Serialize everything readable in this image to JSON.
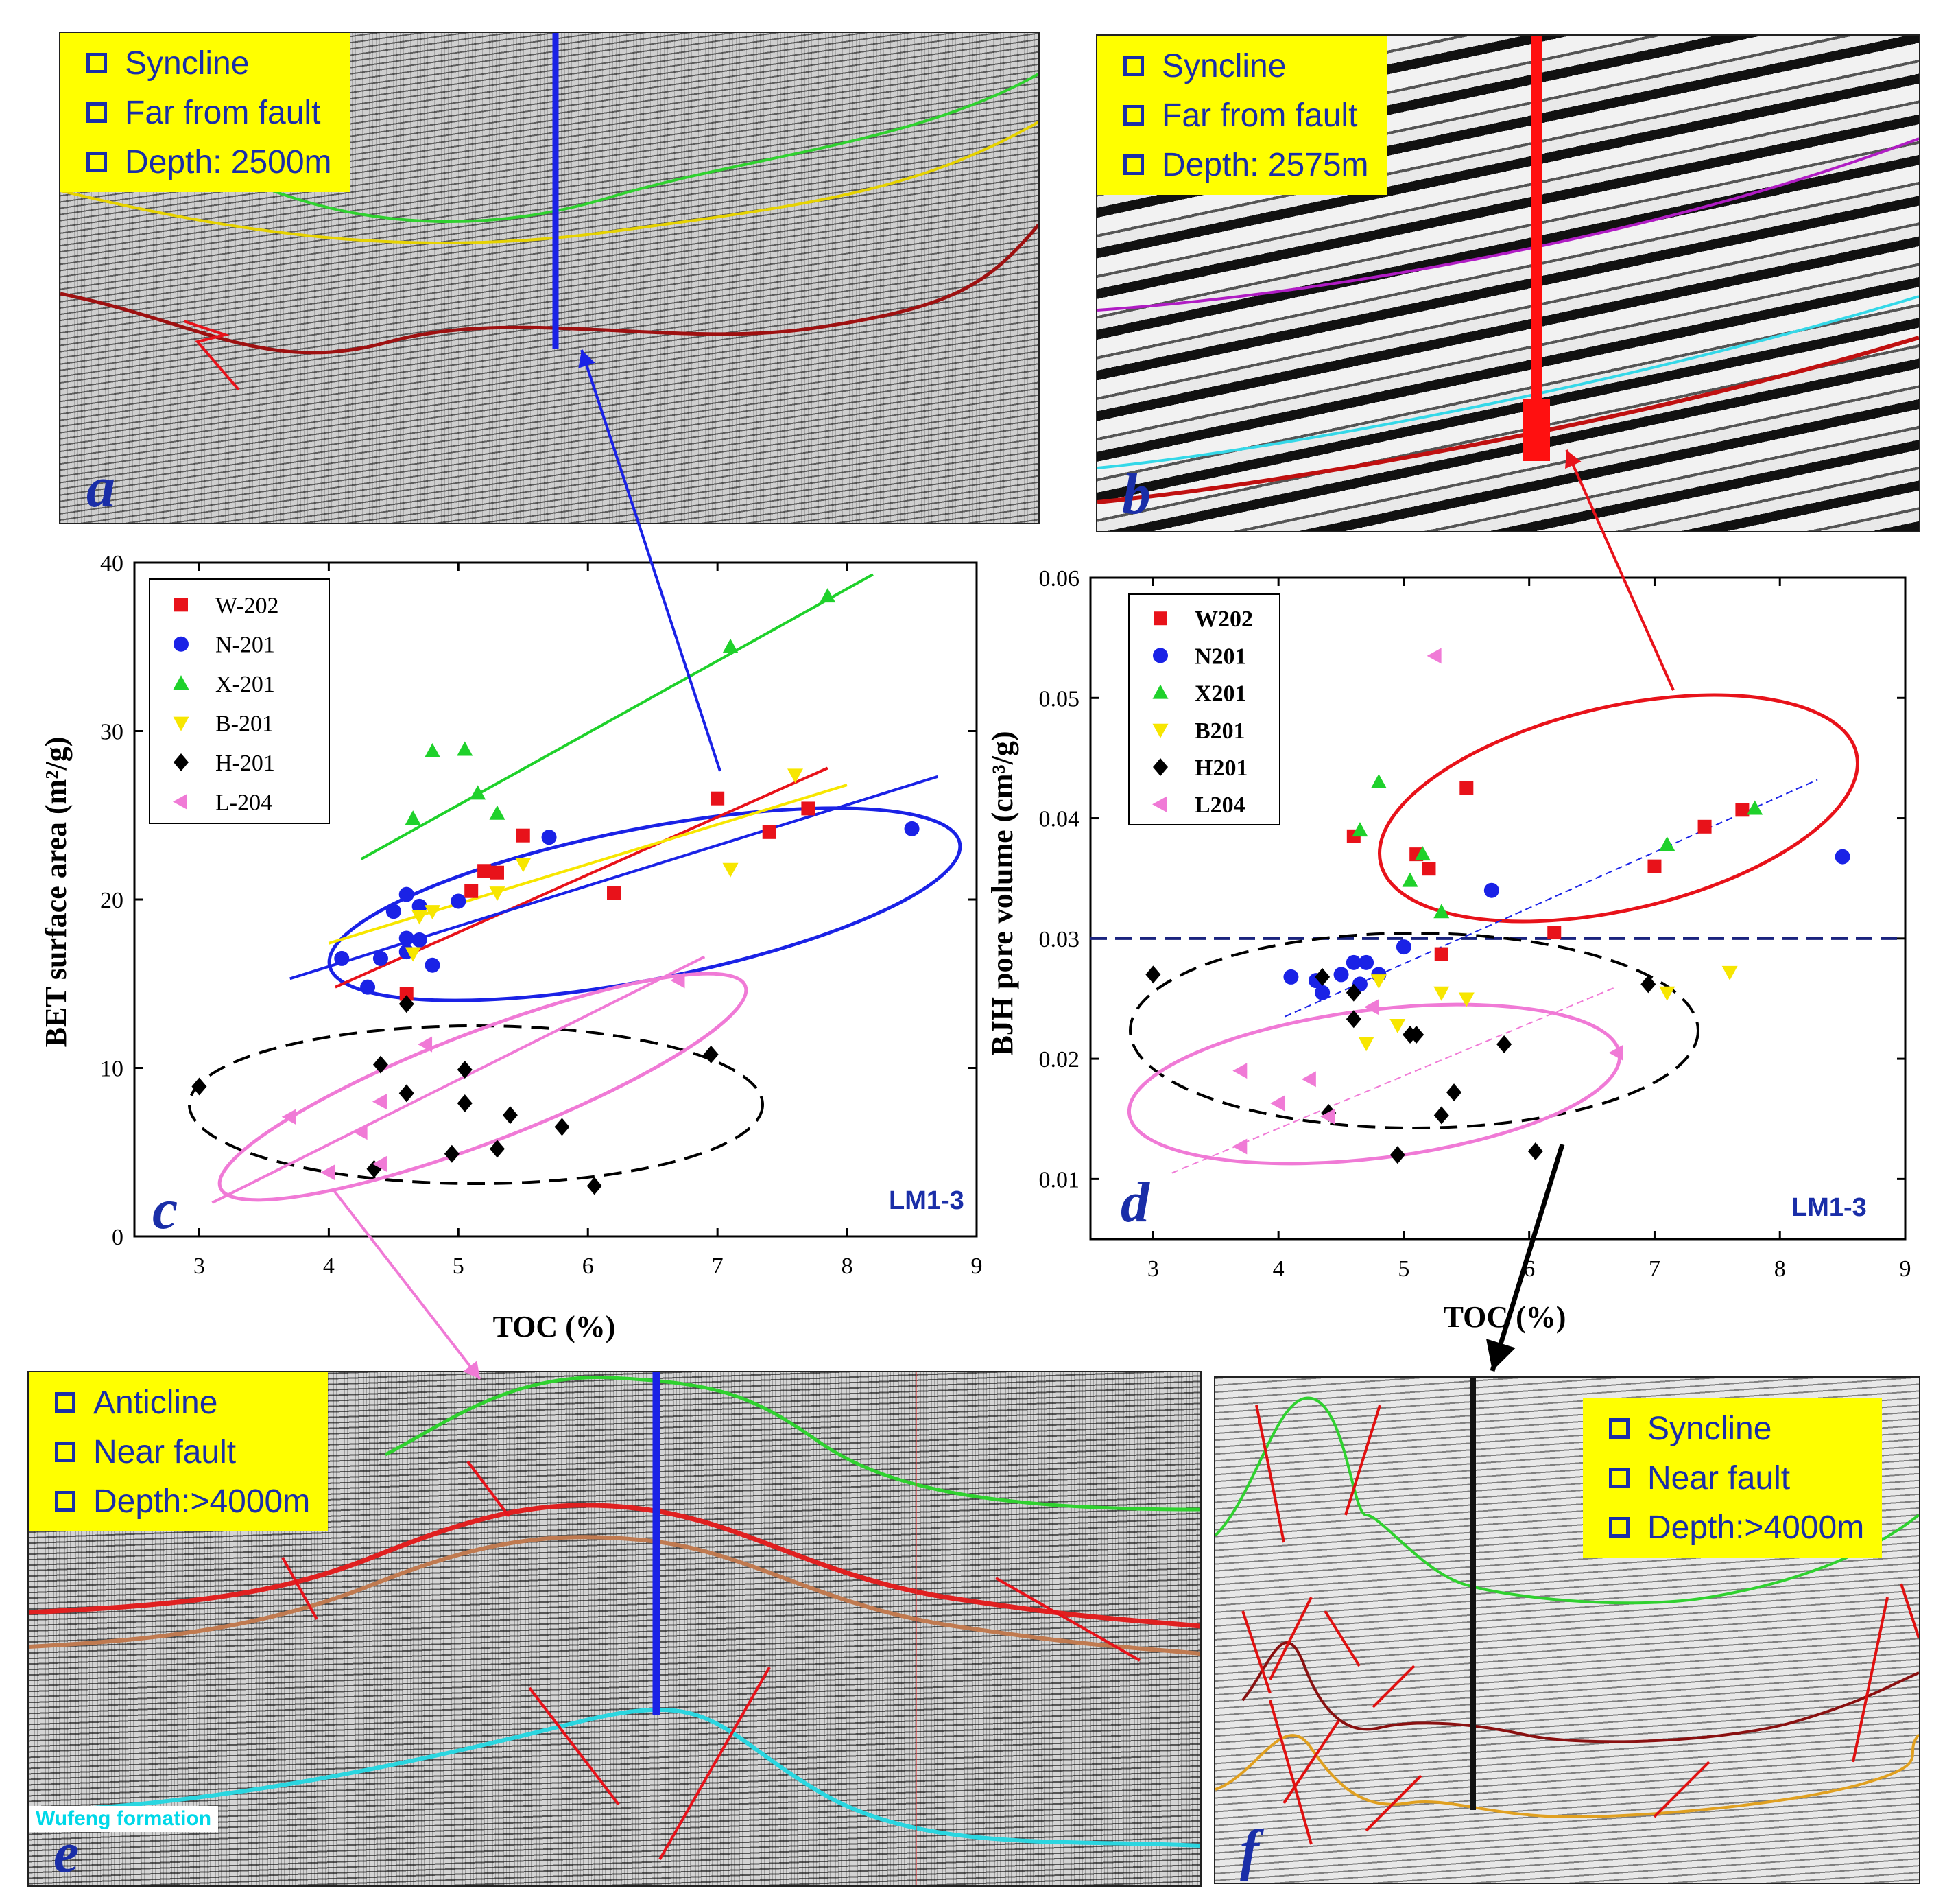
{
  "panels": {
    "a": {
      "letter": "a",
      "items": [
        "Syncline",
        "Far from fault",
        "Depth: 2500m"
      ]
    },
    "b": {
      "letter": "b",
      "items": [
        "Syncline",
        "Far from fault",
        "Depth: 2575m"
      ]
    },
    "c": {
      "letter": "c"
    },
    "d": {
      "letter": "d"
    },
    "e": {
      "letter": "e",
      "items": [
        "Anticline",
        "Near fault",
        "Depth:>4000m"
      ],
      "formation_label": "Wufeng formation"
    },
    "f": {
      "letter": "f",
      "items": [
        "Syncline",
        "Near fault",
        "Depth:>4000m"
      ]
    }
  },
  "colors": {
    "W": "#e8121a",
    "N": "#1a22e6",
    "X": "#1fd12b",
    "B": "#f7e600",
    "H": "#000000",
    "L": "#f07ad6",
    "blue_ellipse": "#1a22e6",
    "red_ellipse": "#e8121a",
    "pink_ellipse": "#f07ad6",
    "label_blue": "#1a2ea8"
  },
  "chart_data": [
    {
      "id": "c",
      "type": "scatter",
      "xlabel": "TOC (%)",
      "ylabel": "BET surface area (m²/g)",
      "xlim": [
        2.5,
        9
      ],
      "ylim": [
        0,
        40
      ],
      "xticks": [
        "3",
        "4",
        "5",
        "6",
        "7",
        "8",
        "9"
      ],
      "yticks": [
        "0",
        "10",
        "20",
        "30",
        "40"
      ],
      "annotation": "LM1-3",
      "series": [
        {
          "name": "W-202",
          "key": "W",
          "marker": "square",
          "points": [
            [
              4.6,
              14.4
            ],
            [
              5.1,
              20.5
            ],
            [
              5.2,
              21.7
            ],
            [
              5.3,
              21.6
            ],
            [
              5.5,
              23.8
            ],
            [
              6.2,
              20.4
            ],
            [
              7.0,
              26.0
            ],
            [
              7.4,
              24.0
            ],
            [
              7.7,
              25.4
            ]
          ],
          "fit": [
            [
              4.05,
              14.8
            ],
            [
              7.85,
              27.8
            ]
          ]
        },
        {
          "name": "N-201",
          "key": "N",
          "marker": "circle",
          "points": [
            [
              4.1,
              16.5
            ],
            [
              4.3,
              14.8
            ],
            [
              4.4,
              16.5
            ],
            [
              4.5,
              19.3
            ],
            [
              4.6,
              16.9
            ],
            [
              4.6,
              17.7
            ],
            [
              4.6,
              20.3
            ],
            [
              4.7,
              17.6
            ],
            [
              4.7,
              19.6
            ],
            [
              4.8,
              16.1
            ],
            [
              5.0,
              19.9
            ],
            [
              5.7,
              23.7
            ],
            [
              8.5,
              24.2
            ]
          ],
          "fit": [
            [
              3.7,
              15.3
            ],
            [
              8.7,
              27.3
            ]
          ]
        },
        {
          "name": "X-201",
          "key": "X",
          "marker": "triangle-up",
          "points": [
            [
              4.65,
              24.8
            ],
            [
              4.8,
              28.8
            ],
            [
              5.05,
              28.9
            ],
            [
              5.15,
              26.3
            ],
            [
              5.3,
              25.1
            ],
            [
              7.1,
              35.0
            ],
            [
              7.85,
              38.0
            ]
          ],
          "fit": [
            [
              4.25,
              22.4
            ],
            [
              8.2,
              39.3
            ]
          ]
        },
        {
          "name": "B-201",
          "key": "B",
          "marker": "triangle-down",
          "points": [
            [
              4.65,
              16.8
            ],
            [
              4.7,
              19.0
            ],
            [
              4.8,
              19.3
            ],
            [
              5.3,
              20.4
            ],
            [
              5.5,
              22.1
            ],
            [
              7.1,
              21.8
            ],
            [
              7.6,
              27.4
            ]
          ],
          "fit": [
            [
              4.0,
              17.4
            ],
            [
              8.0,
              26.8
            ]
          ]
        },
        {
          "name": "H-201",
          "key": "H",
          "marker": "diamond",
          "points": [
            [
              3.0,
              8.9
            ],
            [
              4.35,
              4.0
            ],
            [
              4.4,
              10.2
            ],
            [
              4.6,
              13.8
            ],
            [
              4.6,
              8.5
            ],
            [
              4.95,
              4.9
            ],
            [
              5.05,
              7.9
            ],
            [
              5.05,
              9.9
            ],
            [
              5.3,
              5.2
            ],
            [
              5.4,
              7.2
            ],
            [
              5.8,
              6.5
            ],
            [
              6.05,
              3.0
            ],
            [
              6.95,
              10.8
            ]
          ]
        },
        {
          "name": "L-204",
          "key": "L",
          "marker": "triangle-left",
          "points": [
            [
              3.7,
              7.1
            ],
            [
              4.0,
              3.8
            ],
            [
              4.25,
              6.2
            ],
            [
              4.4,
              8.0
            ],
            [
              4.4,
              4.3
            ],
            [
              4.75,
              11.4
            ],
            [
              6.7,
              15.2
            ]
          ],
          "fit": [
            [
              3.1,
              2.0
            ],
            [
              6.9,
              16.6
            ]
          ]
        }
      ]
    },
    {
      "id": "d",
      "type": "scatter",
      "xlabel": "TOC (%)",
      "ylabel": "BJH pore volume (cm³/g)",
      "xlim": [
        2.5,
        9
      ],
      "ylim": [
        0.005,
        0.06
      ],
      "xticks": [
        "3",
        "4",
        "5",
        "6",
        "7",
        "8",
        "9"
      ],
      "yticks": [
        "0.01",
        "0.02",
        "0.03",
        "0.04",
        "0.05",
        "0.06"
      ],
      "annotation": "LM1-3",
      "threshold": 0.03,
      "series": [
        {
          "name": "W202",
          "key": "W",
          "marker": "square",
          "points": [
            [
              4.6,
              0.0385
            ],
            [
              5.1,
              0.037
            ],
            [
              5.2,
              0.0358
            ],
            [
              5.3,
              0.0287
            ],
            [
              5.5,
              0.0425
            ],
            [
              6.2,
              0.0305
            ],
            [
              7.0,
              0.036
            ],
            [
              7.4,
              0.0393
            ],
            [
              7.7,
              0.0407
            ]
          ]
        },
        {
          "name": "N201",
          "key": "N",
          "marker": "circle",
          "points": [
            [
              4.1,
              0.0268
            ],
            [
              4.3,
              0.0265
            ],
            [
              4.35,
              0.0255
            ],
            [
              4.5,
              0.027
            ],
            [
              4.6,
              0.028
            ],
            [
              4.7,
              0.028
            ],
            [
              4.8,
              0.027
            ],
            [
              5.0,
              0.0293
            ],
            [
              5.7,
              0.034
            ],
            [
              8.5,
              0.0368
            ],
            [
              4.65,
              0.0262
            ]
          ],
          "fit": [
            [
              4.05,
              0.0235
            ],
            [
              8.3,
              0.0432
            ]
          ]
        },
        {
          "name": "X201",
          "key": "X",
          "marker": "triangle-up",
          "points": [
            [
              4.65,
              0.039
            ],
            [
              4.8,
              0.043
            ],
            [
              5.05,
              0.0348
            ],
            [
              5.15,
              0.037
            ],
            [
              5.3,
              0.0322
            ],
            [
              7.1,
              0.0378
            ],
            [
              7.8,
              0.0408
            ]
          ]
        },
        {
          "name": "B201",
          "key": "B",
          "marker": "triangle-down",
          "points": [
            [
              4.7,
              0.0213
            ],
            [
              4.8,
              0.0265
            ],
            [
              4.95,
              0.0228
            ],
            [
              5.3,
              0.0255
            ],
            [
              5.5,
              0.025
            ],
            [
              7.1,
              0.0255
            ],
            [
              7.6,
              0.0272
            ]
          ]
        },
        {
          "name": "H201",
          "key": "H",
          "marker": "diamond",
          "points": [
            [
              3.0,
              0.027
            ],
            [
              4.4,
              0.0155
            ],
            [
              4.35,
              0.0268
            ],
            [
              4.6,
              0.0233
            ],
            [
              4.6,
              0.0255
            ],
            [
              4.95,
              0.012
            ],
            [
              5.05,
              0.022
            ],
            [
              5.1,
              0.022
            ],
            [
              5.3,
              0.0153
            ],
            [
              5.4,
              0.0172
            ],
            [
              5.8,
              0.0212
            ],
            [
              6.05,
              0.0123
            ],
            [
              6.95,
              0.0262
            ]
          ]
        },
        {
          "name": "L204",
          "key": "L",
          "marker": "triangle-left",
          "points": [
            [
              3.7,
              0.019
            ],
            [
              3.7,
              0.0127
            ],
            [
              4.0,
              0.0163
            ],
            [
              4.25,
              0.0183
            ],
            [
              4.4,
              0.0152
            ],
            [
              4.75,
              0.0243
            ],
            [
              5.25,
              0.0535
            ],
            [
              6.7,
              0.0205
            ]
          ],
          "fit": [
            [
              3.15,
              0.0105
            ],
            [
              6.7,
              0.026
            ]
          ]
        }
      ]
    }
  ]
}
